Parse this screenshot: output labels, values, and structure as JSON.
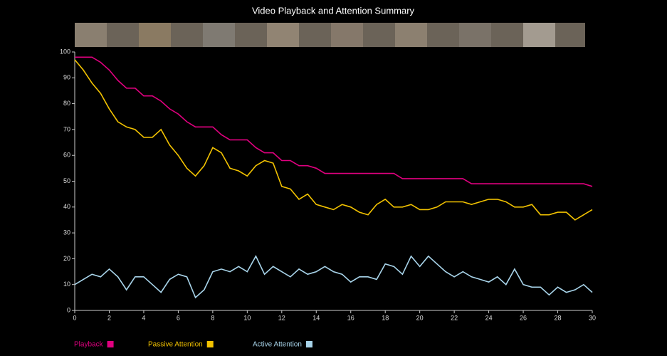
{
  "chart_data": {
    "type": "line",
    "title": "Video Playback and Attention Summary",
    "x": [
      0,
      0.5,
      1,
      1.5,
      2,
      2.5,
      3,
      3.5,
      4,
      4.5,
      5,
      5.5,
      6,
      6.5,
      7,
      7.5,
      8,
      8.5,
      9,
      9.5,
      10,
      10.5,
      11,
      11.5,
      12,
      12.5,
      13,
      13.5,
      14,
      14.5,
      15,
      15.5,
      16,
      16.5,
      17,
      17.5,
      18,
      18.5,
      19,
      19.5,
      20,
      20.5,
      21,
      21.5,
      22,
      22.5,
      23,
      23.5,
      24,
      24.5,
      25,
      25.5,
      26,
      26.5,
      27,
      27.5,
      28,
      28.5,
      29,
      29.5,
      30
    ],
    "series": [
      {
        "name": "Playback",
        "color": "#e0007f",
        "values": [
          98,
          98,
          98,
          96,
          93,
          89,
          86,
          86,
          83,
          83,
          81,
          78,
          76,
          73,
          71,
          71,
          71,
          68,
          66,
          66,
          66,
          63,
          61,
          61,
          58,
          58,
          56,
          56,
          55,
          53,
          53,
          53,
          53,
          53,
          53,
          53,
          53,
          53,
          51,
          51,
          51,
          51,
          51,
          51,
          51,
          51,
          49,
          49,
          49,
          49,
          49,
          49,
          49,
          49,
          49,
          49,
          49,
          49,
          49,
          49,
          48
        ]
      },
      {
        "name": "Passive Attention",
        "color": "#f2c200",
        "values": [
          97,
          93,
          88,
          84,
          78,
          73,
          71,
          70,
          67,
          67,
          70,
          64,
          60,
          55,
          52,
          56,
          63,
          61,
          55,
          54,
          52,
          56,
          58,
          57,
          48,
          47,
          43,
          45,
          41,
          40,
          39,
          41,
          40,
          38,
          37,
          41,
          43,
          40,
          40,
          41,
          39,
          39,
          40,
          42,
          42,
          42,
          41,
          42,
          43,
          43,
          42,
          40,
          40,
          41,
          37,
          37,
          38,
          38,
          35,
          37,
          39
        ]
      },
      {
        "name": "Active Attention",
        "color": "#a8d4ea",
        "values": [
          10,
          12,
          14,
          13,
          16,
          13,
          8,
          13,
          13,
          10,
          7,
          12,
          14,
          13,
          5,
          8,
          15,
          16,
          15,
          17,
          15,
          21,
          14,
          17,
          15,
          13,
          16,
          14,
          15,
          17,
          15,
          14,
          11,
          13,
          13,
          12,
          18,
          17,
          14,
          21,
          17,
          21,
          18,
          15,
          13,
          15,
          13,
          12,
          11,
          13,
          10,
          16,
          10,
          9,
          9,
          6,
          9,
          7,
          8,
          10,
          7
        ]
      }
    ],
    "xlim": [
      0,
      30
    ],
    "xticks": [
      0,
      2,
      4,
      6,
      8,
      10,
      12,
      14,
      16,
      18,
      20,
      22,
      24,
      26,
      28,
      30
    ],
    "ylim": [
      0,
      100
    ],
    "yticks": [
      0,
      10,
      20,
      30,
      40,
      50,
      60,
      70,
      80,
      90,
      100
    ]
  }
}
